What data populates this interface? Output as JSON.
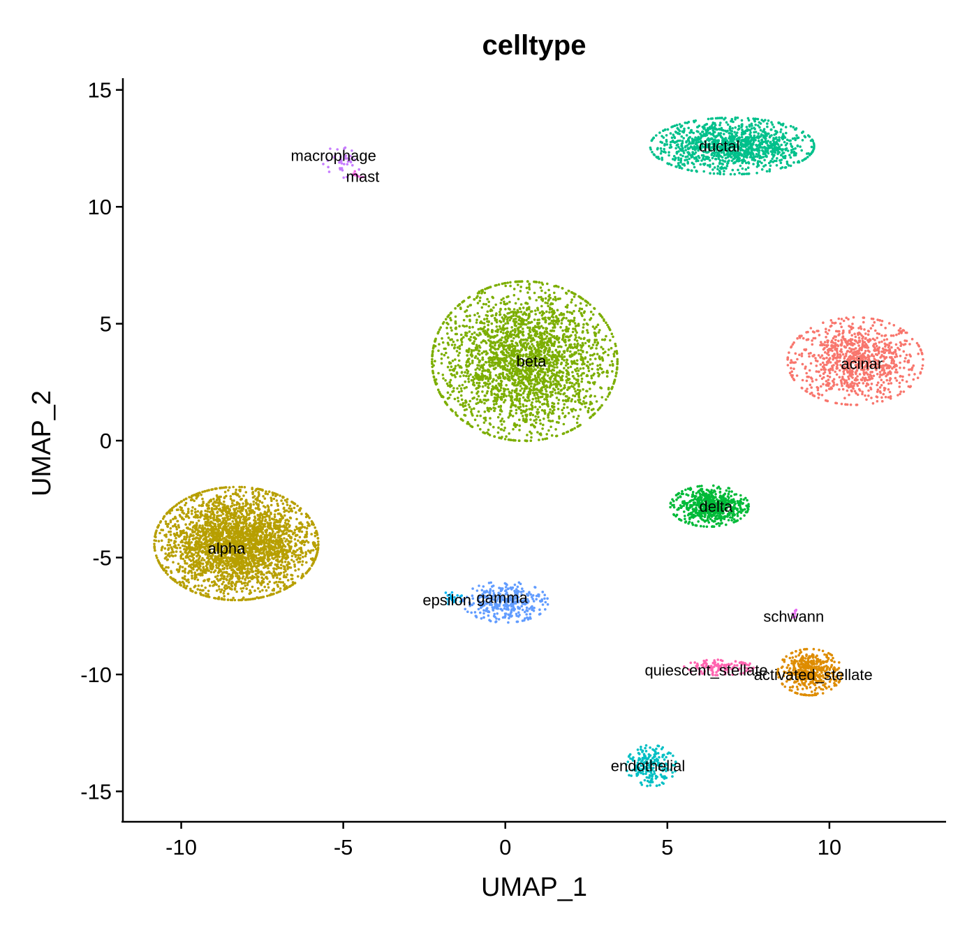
{
  "chart_data": {
    "type": "scatter",
    "title": "celltype",
    "xlabel": "UMAP_1",
    "ylabel": "UMAP_2",
    "xlim": [
      -11.8,
      13.6
    ],
    "ylim": [
      -16.3,
      15.5
    ],
    "xticks": [
      -10,
      -5,
      0,
      5,
      10
    ],
    "xtick_labels": [
      "-10",
      "-5",
      "0",
      "5",
      "10"
    ],
    "yticks": [
      -15,
      -10,
      -5,
      0,
      5,
      10,
      15
    ],
    "ytick_labels": [
      "-15",
      "-10",
      "-5",
      "0",
      "5",
      "10",
      "15"
    ],
    "grid": false,
    "legend": "none",
    "series": [
      {
        "name": "acinar",
        "color": "#F8766D",
        "center": [
          10.8,
          3.4
        ],
        "spread": [
          0.95,
          0.85
        ],
        "count": 900
      },
      {
        "name": "activated_stellate",
        "color": "#DE8C00",
        "center": [
          9.4,
          -9.9
        ],
        "spread": [
          0.45,
          0.45
        ],
        "count": 450
      },
      {
        "name": "alpha",
        "color": "#B79F00",
        "center": [
          -8.3,
          -4.4
        ],
        "spread": [
          1.15,
          1.1
        ],
        "count": 3000
      },
      {
        "name": "beta",
        "color": "#7CAE00",
        "center": [
          0.6,
          3.4
        ],
        "spread": [
          1.3,
          1.55
        ],
        "count": 2600
      },
      {
        "name": "delta",
        "color": "#00BA38",
        "center": [
          6.3,
          -2.8
        ],
        "spread": [
          0.55,
          0.4
        ],
        "count": 600
      },
      {
        "name": "ductal",
        "color": "#00C08B",
        "center": [
          7.0,
          12.6
        ],
        "spread": [
          1.15,
          0.55
        ],
        "count": 1200
      },
      {
        "name": "endothelial",
        "color": "#00BFC4",
        "center": [
          4.5,
          -13.9
        ],
        "spread": [
          0.35,
          0.4
        ],
        "count": 200
      },
      {
        "name": "epsilon",
        "color": "#00B4F0",
        "center": [
          -1.6,
          -6.7
        ],
        "spread": [
          0.15,
          0.15
        ],
        "count": 20
      },
      {
        "name": "gamma",
        "color": "#619CFF",
        "center": [
          0.0,
          -6.9
        ],
        "spread": [
          0.6,
          0.4
        ],
        "count": 350
      },
      {
        "name": "macrophage",
        "color": "#C77CFF",
        "center": [
          -5.1,
          11.9
        ],
        "spread": [
          0.3,
          0.3
        ],
        "count": 40
      },
      {
        "name": "mast",
        "color": "#F564E3",
        "center": [
          -4.6,
          11.3
        ],
        "spread": [
          0.1,
          0.1
        ],
        "count": 10
      },
      {
        "name": "quiescent_stellate",
        "color": "#FF64B0",
        "center": [
          6.6,
          -9.7
        ],
        "spread": [
          0.5,
          0.15
        ],
        "count": 120
      },
      {
        "name": "schwann",
        "color": "#E76BF3",
        "center": [
          8.9,
          -7.4
        ],
        "spread": [
          0.05,
          0.1
        ],
        "count": 8
      }
    ],
    "labels": [
      {
        "text": "macrophage",
        "x": -5.3,
        "y": 12.2
      },
      {
        "text": "mast",
        "x": -4.4,
        "y": 11.3
      },
      {
        "text": "ductal",
        "x": 6.6,
        "y": 12.6
      },
      {
        "text": "beta",
        "x": 0.8,
        "y": 3.4
      },
      {
        "text": "acinar",
        "x": 11.0,
        "y": 3.3
      },
      {
        "text": "delta",
        "x": 6.5,
        "y": -2.8
      },
      {
        "text": "alpha",
        "x": -8.6,
        "y": -4.6
      },
      {
        "text": "epsilon",
        "x": -1.8,
        "y": -6.8
      },
      {
        "text": "gamma",
        "x": -0.1,
        "y": -6.7
      },
      {
        "text": "schwann",
        "x": 8.9,
        "y": -7.5
      },
      {
        "text": "quiescent_stellate",
        "x": 6.2,
        "y": -9.8
      },
      {
        "text": "activated_stellate",
        "x": 9.5,
        "y": -10.0
      },
      {
        "text": "endothelial",
        "x": 4.4,
        "y": -13.9
      }
    ]
  }
}
